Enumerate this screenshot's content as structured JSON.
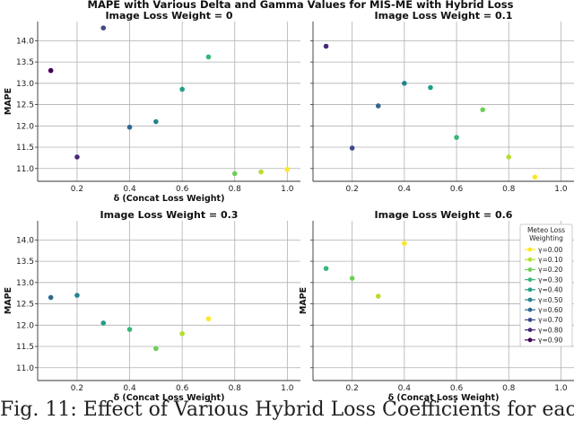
{
  "figure_title": "MAPE with Various Delta and Gamma Values for MIS-ME with Hybrid Loss",
  "caption": "Fig. 11: Effect of Various Hybrid Loss Coefficients for eacl",
  "legend": {
    "title": "Meteo Loss Weighting",
    "entries": [
      {
        "label": "γ=0.00",
        "color": "#fde725"
      },
      {
        "label": "γ=0.10",
        "color": "#b5de2b"
      },
      {
        "label": "γ=0.20",
        "color": "#6ece58"
      },
      {
        "label": "γ=0.30",
        "color": "#35b779"
      },
      {
        "label": "γ=0.40",
        "color": "#1f9e89"
      },
      {
        "label": "γ=0.50",
        "color": "#26828e"
      },
      {
        "label": "γ=0.60",
        "color": "#31688e"
      },
      {
        "label": "γ=0.70",
        "color": "#3e4989"
      },
      {
        "label": "γ=0.80",
        "color": "#482878"
      },
      {
        "label": "γ=0.90",
        "color": "#440154"
      }
    ]
  },
  "chart_data": [
    {
      "type": "scatter",
      "title": "Image Loss Weight = 0",
      "xlabel": "δ (Concat Loss Weight)",
      "ylabel": "MAPE",
      "xlim": [
        0.05,
        1.05
      ],
      "ylim": [
        10.7,
        14.45
      ],
      "xticks": [
        "0.2",
        "0.4",
        "0.6",
        "0.8",
        "1.0"
      ],
      "yticks": [
        "11.0",
        "11.5",
        "12.0",
        "12.5",
        "13.0",
        "13.5",
        "14.0"
      ],
      "grid": true,
      "points": [
        {
          "x": 0.1,
          "y": 13.3,
          "gamma": 0.9
        },
        {
          "x": 0.2,
          "y": 11.27,
          "gamma": 0.8
        },
        {
          "x": 0.3,
          "y": 14.3,
          "gamma": 0.7
        },
        {
          "x": 0.4,
          "y": 11.97,
          "gamma": 0.6
        },
        {
          "x": 0.5,
          "y": 12.1,
          "gamma": 0.5
        },
        {
          "x": 0.6,
          "y": 12.86,
          "gamma": 0.4
        },
        {
          "x": 0.7,
          "y": 13.62,
          "gamma": 0.3
        },
        {
          "x": 0.8,
          "y": 10.88,
          "gamma": 0.2
        },
        {
          "x": 0.9,
          "y": 10.92,
          "gamma": 0.1
        },
        {
          "x": 1.0,
          "y": 10.98,
          "gamma": 0.0
        }
      ]
    },
    {
      "type": "scatter",
      "title": "Image Loss Weight = 0.1",
      "xlabel": "",
      "ylabel": "",
      "xlim": [
        0.05,
        1.05
      ],
      "ylim": [
        10.7,
        14.45
      ],
      "xticks": [
        "0.2",
        "0.4",
        "0.6",
        "0.8",
        "1.0"
      ],
      "yticks": [],
      "grid": true,
      "points": [
        {
          "x": 0.1,
          "y": 13.87,
          "gamma": 0.8
        },
        {
          "x": 0.2,
          "y": 11.48,
          "gamma": 0.7
        },
        {
          "x": 0.3,
          "y": 12.47,
          "gamma": 0.6
        },
        {
          "x": 0.4,
          "y": 13.0,
          "gamma": 0.5
        },
        {
          "x": 0.5,
          "y": 12.9,
          "gamma": 0.4
        },
        {
          "x": 0.6,
          "y": 11.73,
          "gamma": 0.3
        },
        {
          "x": 0.7,
          "y": 12.38,
          "gamma": 0.2
        },
        {
          "x": 0.8,
          "y": 11.27,
          "gamma": 0.1
        },
        {
          "x": 0.9,
          "y": 10.8,
          "gamma": 0.0
        }
      ]
    },
    {
      "type": "scatter",
      "title": "Image Loss Weight = 0.3",
      "xlabel": "δ (Concat Loss Weight)",
      "ylabel": "MAPE",
      "xlim": [
        0.05,
        1.05
      ],
      "ylim": [
        10.7,
        14.45
      ],
      "xticks": [
        "0.2",
        "0.4",
        "0.6",
        "0.8",
        "1.0"
      ],
      "yticks": [
        "11.0",
        "11.5",
        "12.0",
        "12.5",
        "13.0",
        "13.5",
        "14.0"
      ],
      "grid": true,
      "points": [
        {
          "x": 0.1,
          "y": 12.65,
          "gamma": 0.6
        },
        {
          "x": 0.2,
          "y": 12.7,
          "gamma": 0.5
        },
        {
          "x": 0.3,
          "y": 12.05,
          "gamma": 0.4
        },
        {
          "x": 0.4,
          "y": 11.9,
          "gamma": 0.3
        },
        {
          "x": 0.5,
          "y": 11.45,
          "gamma": 0.2
        },
        {
          "x": 0.6,
          "y": 11.8,
          "gamma": 0.1
        },
        {
          "x": 0.7,
          "y": 12.15,
          "gamma": 0.0
        }
      ]
    },
    {
      "type": "scatter",
      "title": "Image Loss Weight = 0.6",
      "xlabel": "δ (Concat Loss Weight)",
      "ylabel": "MAPE",
      "xlim": [
        0.05,
        1.05
      ],
      "ylim": [
        10.7,
        14.45
      ],
      "xticks": [
        "0.2",
        "0.4",
        "0.6",
        "0.8",
        "1.0"
      ],
      "yticks": [],
      "grid": true,
      "points": [
        {
          "x": 0.1,
          "y": 13.33,
          "gamma": 0.3
        },
        {
          "x": 0.2,
          "y": 13.1,
          "gamma": 0.2
        },
        {
          "x": 0.3,
          "y": 12.68,
          "gamma": 0.1
        },
        {
          "x": 0.4,
          "y": 13.92,
          "gamma": 0.0
        }
      ]
    }
  ]
}
